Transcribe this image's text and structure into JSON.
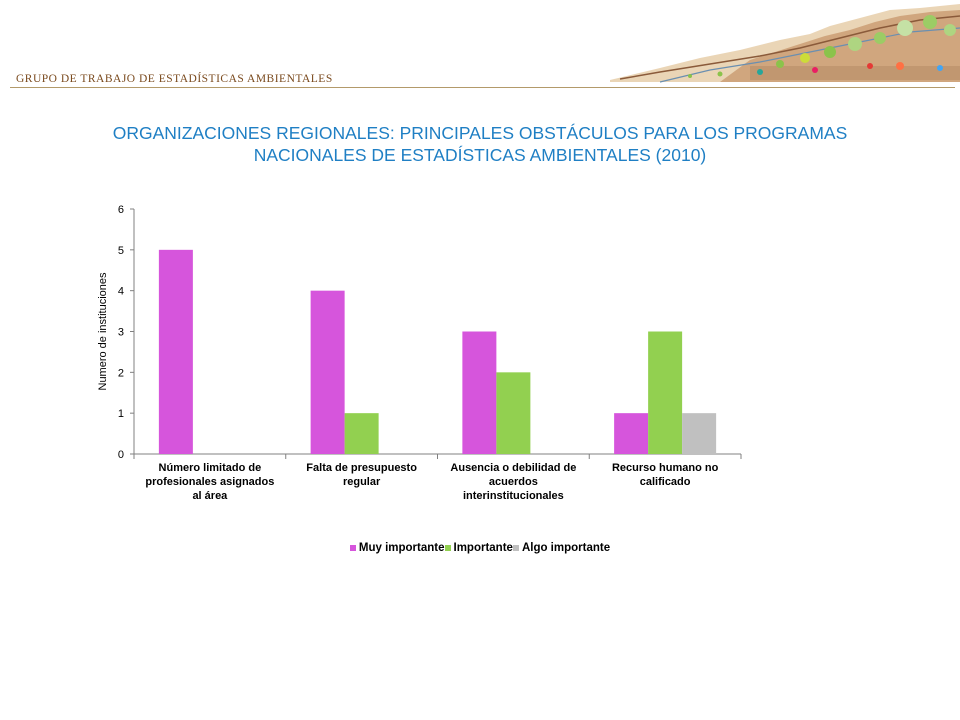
{
  "header": {
    "label": "GRUPO DE TRABAJO DE ESTADÍSTICAS AMBIENTALES"
  },
  "title": {
    "line1": "ORGANIZACIONES REGIONALES: PRINCIPALES OBSTÁCULOS PARA LOS PROGRAMAS",
    "line2": "NACIONALES DE ESTADÍSTICAS AMBIENTALES (2010)"
  },
  "colors": {
    "title": "#1f7fc4",
    "header": "#7a4a1e",
    "muy_importante": "#d655dc",
    "importante": "#92d050",
    "algo_importante": "#c0c0c0"
  },
  "chart_data": {
    "type": "bar",
    "ylabel": "Numero de instituciones",
    "xlabel": "",
    "ylim": [
      0,
      6
    ],
    "yticks": [
      "0",
      "1",
      "2",
      "3",
      "4",
      "5",
      "6"
    ],
    "categories": [
      [
        "Número limitado de",
        "profesionales asignados",
        "al área"
      ],
      [
        "Falta de presupuesto",
        "regular"
      ],
      [
        "Ausencia o debilidad de",
        "acuerdos",
        "interinstitucionales"
      ],
      [
        "Recurso humano no",
        "calificado"
      ]
    ],
    "series": [
      {
        "name": "Muy importante",
        "color": "#d655dc",
        "values": [
          5,
          4,
          3,
          1
        ]
      },
      {
        "name": "Importante",
        "color": "#92d050",
        "values": [
          null,
          1,
          2,
          3
        ]
      },
      {
        "name": "Algo importante",
        "color": "#c0c0c0",
        "values": [
          null,
          null,
          null,
          1
        ]
      }
    ],
    "legend": "bottom",
    "grid": false
  }
}
